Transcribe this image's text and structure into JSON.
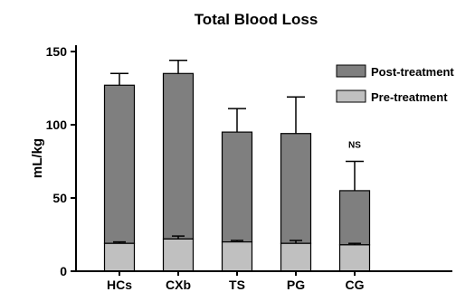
{
  "chart_data": {
    "type": "bar",
    "stacked": true,
    "title": "Total Blood Loss",
    "ylabel": "mL/kg",
    "xlabel": "",
    "ylim": [
      0,
      150
    ],
    "yticks": [
      0,
      50,
      100,
      150
    ],
    "categories": [
      "HCs",
      "CXb",
      "TS",
      "PG",
      "CG"
    ],
    "series": [
      {
        "name": "Pre-treatment",
        "color": "#c0c0c0",
        "values": [
          19,
          22,
          20,
          19,
          18
        ],
        "error_plus": [
          1,
          2,
          1,
          2,
          1
        ]
      },
      {
        "name": "Post-treatment",
        "color": "#7f7f7f",
        "totals": [
          127,
          135,
          95,
          94,
          55
        ],
        "error_plus": [
          8,
          9,
          16,
          25,
          20
        ]
      }
    ],
    "annotations": [
      {
        "category": "CG",
        "text": "NS"
      }
    ],
    "legend_position": "top-right",
    "grid": false
  }
}
